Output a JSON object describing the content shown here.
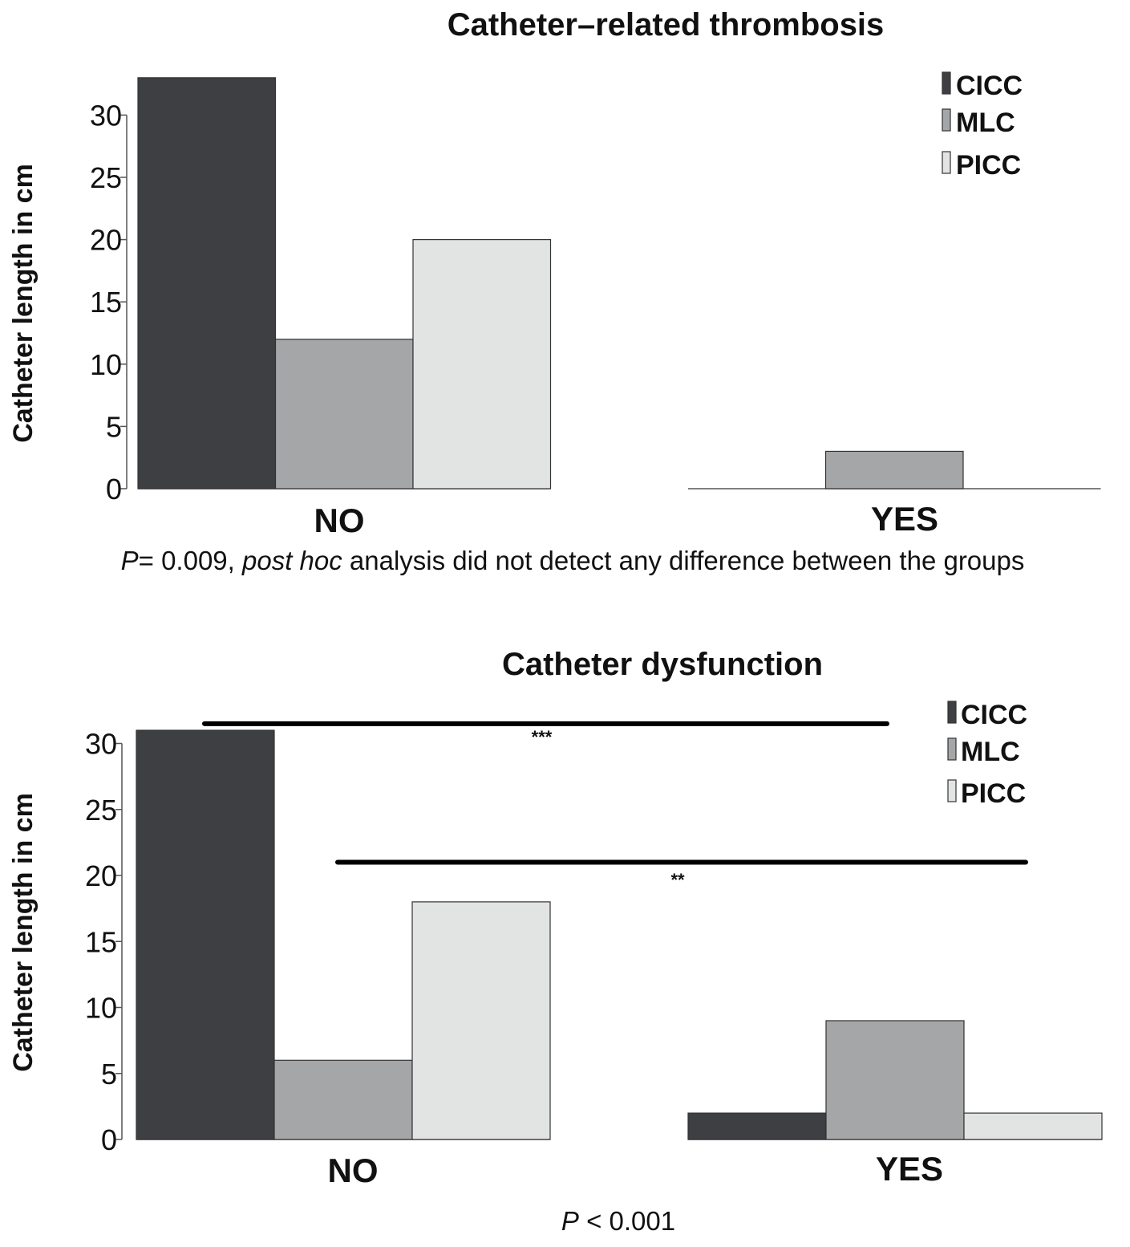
{
  "chart_data": [
    {
      "type": "bar",
      "title": "Catheter–related thrombosis",
      "ylabel": "Catheter length in cm",
      "xlabel": "",
      "categories": [
        "NO",
        "YES"
      ],
      "series": [
        {
          "name": "CICC",
          "color": "#3d3f42",
          "values": [
            33,
            0
          ]
        },
        {
          "name": "MLC",
          "color": "#a4a6a7",
          "values": [
            12,
            3
          ]
        },
        {
          "name": "PICC",
          "color": "#e2e3e3",
          "values": [
            20,
            0
          ]
        }
      ],
      "ylim": [
        0,
        33
      ],
      "yticks": [
        0,
        5,
        10,
        15,
        20,
        25,
        30
      ],
      "legend": "top-right",
      "note_parts": [
        {
          "text": "P",
          "italic": true
        },
        {
          "text": "= 0.009, ",
          "italic": false
        },
        {
          "text": "post hoc",
          "italic": true
        },
        {
          "text": " analysis did not detect any difference between the groups",
          "italic": false
        }
      ],
      "significance": []
    },
    {
      "type": "bar",
      "title": "Catheter dysfunction",
      "ylabel": "Catheter length in cm",
      "xlabel": "",
      "categories": [
        "NO",
        "YES"
      ],
      "series": [
        {
          "name": "CICC",
          "color": "#3d3f42",
          "values": [
            31,
            2
          ]
        },
        {
          "name": "MLC",
          "color": "#a4a6a7",
          "values": [
            6,
            9
          ]
        },
        {
          "name": "PICC",
          "color": "#e2e3e3",
          "values": [
            18,
            2
          ]
        }
      ],
      "ylim": [
        0,
        31
      ],
      "yticks": [
        0,
        5,
        10,
        15,
        20,
        25,
        30
      ],
      "legend": "top-right",
      "note_parts": [
        {
          "text": "P",
          "italic": true
        },
        {
          "text": " < 0.001",
          "italic": false
        }
      ],
      "significance": [
        {
          "label": "***",
          "level": 31.5
        },
        {
          "label": "**",
          "level": 21
        }
      ]
    }
  ]
}
